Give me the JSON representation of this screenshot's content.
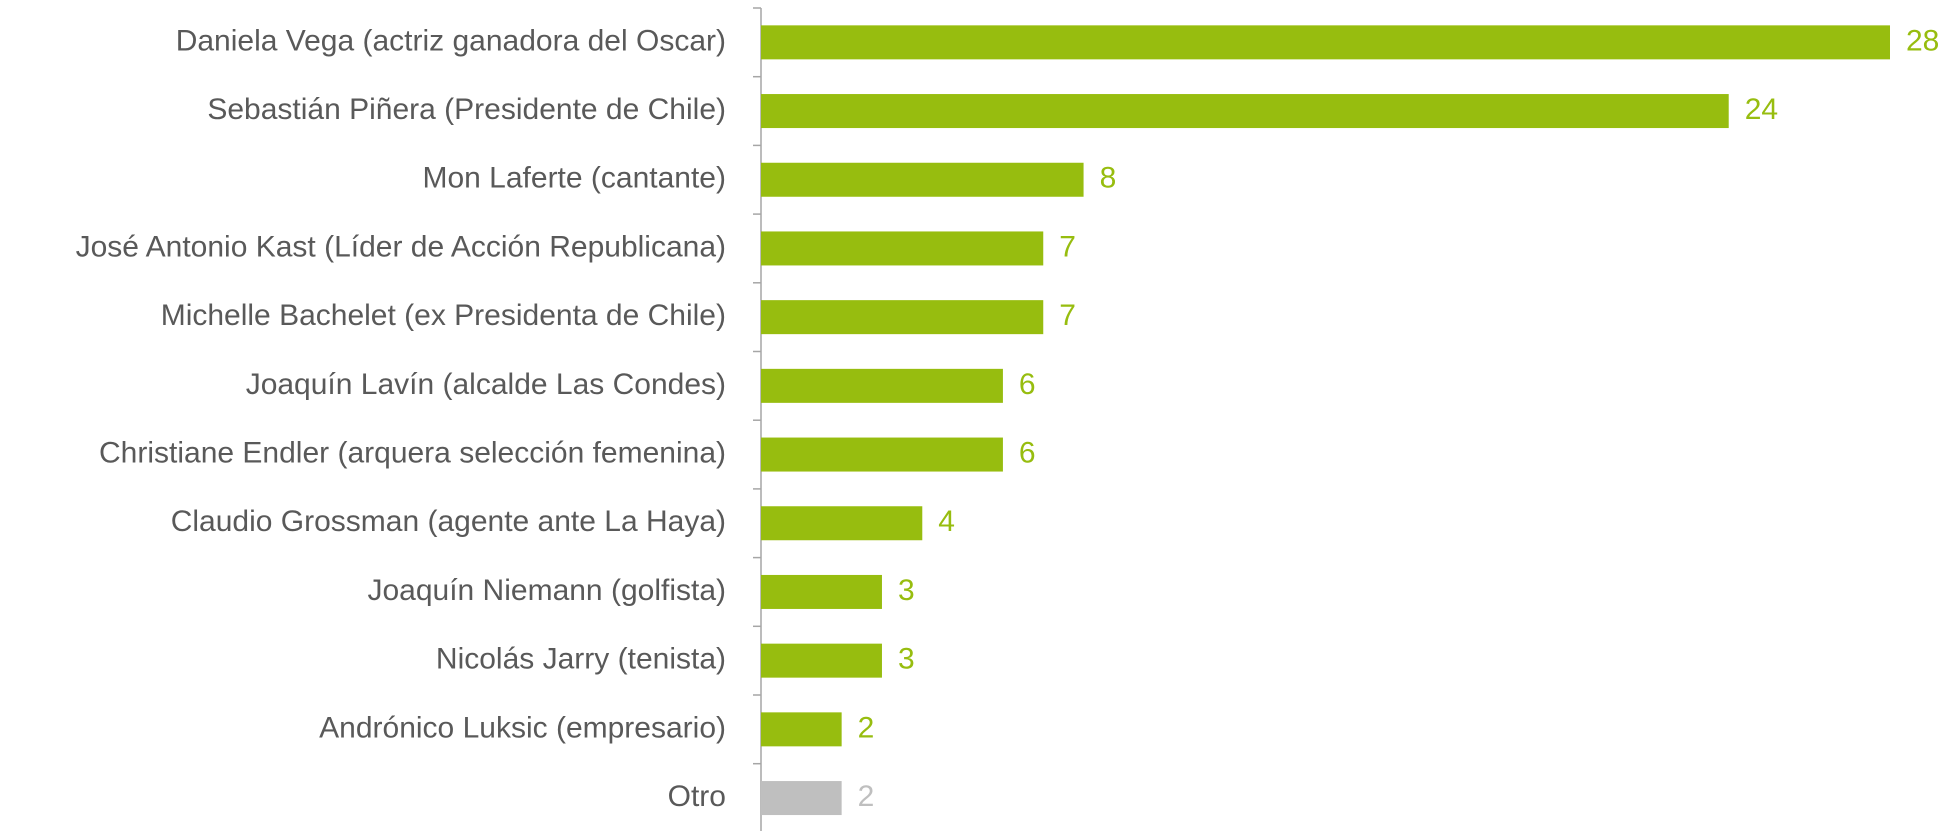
{
  "chart_data": {
    "type": "barh",
    "categories": [
      "Daniela Vega (actriz ganadora del Oscar)",
      "Sebastián Piñera (Presidente de Chile)",
      "Mon Laferte (cantante)",
      "José Antonio Kast (Líder de Acción Republicana)",
      "Michelle Bachelet (ex Presidenta de Chile)",
      "Joaquín Lavín (alcalde Las Condes)",
      "Christiane Endler (arquera selección femenina)",
      "Claudio Grossman (agente ante La Haya)",
      "Joaquín Niemann (golfista)",
      "Nicolás Jarry (tenista)",
      "Andrónico Luksic (empresario)",
      "Otro"
    ],
    "values": [
      28,
      24,
      8,
      7,
      7,
      6,
      6,
      4,
      3,
      3,
      2,
      2
    ],
    "colors": [
      "#97bd0f",
      "#97bd0f",
      "#97bd0f",
      "#97bd0f",
      "#97bd0f",
      "#97bd0f",
      "#97bd0f",
      "#97bd0f",
      "#97bd0f",
      "#97bd0f",
      "#97bd0f",
      "#bfbfbf"
    ]
  }
}
